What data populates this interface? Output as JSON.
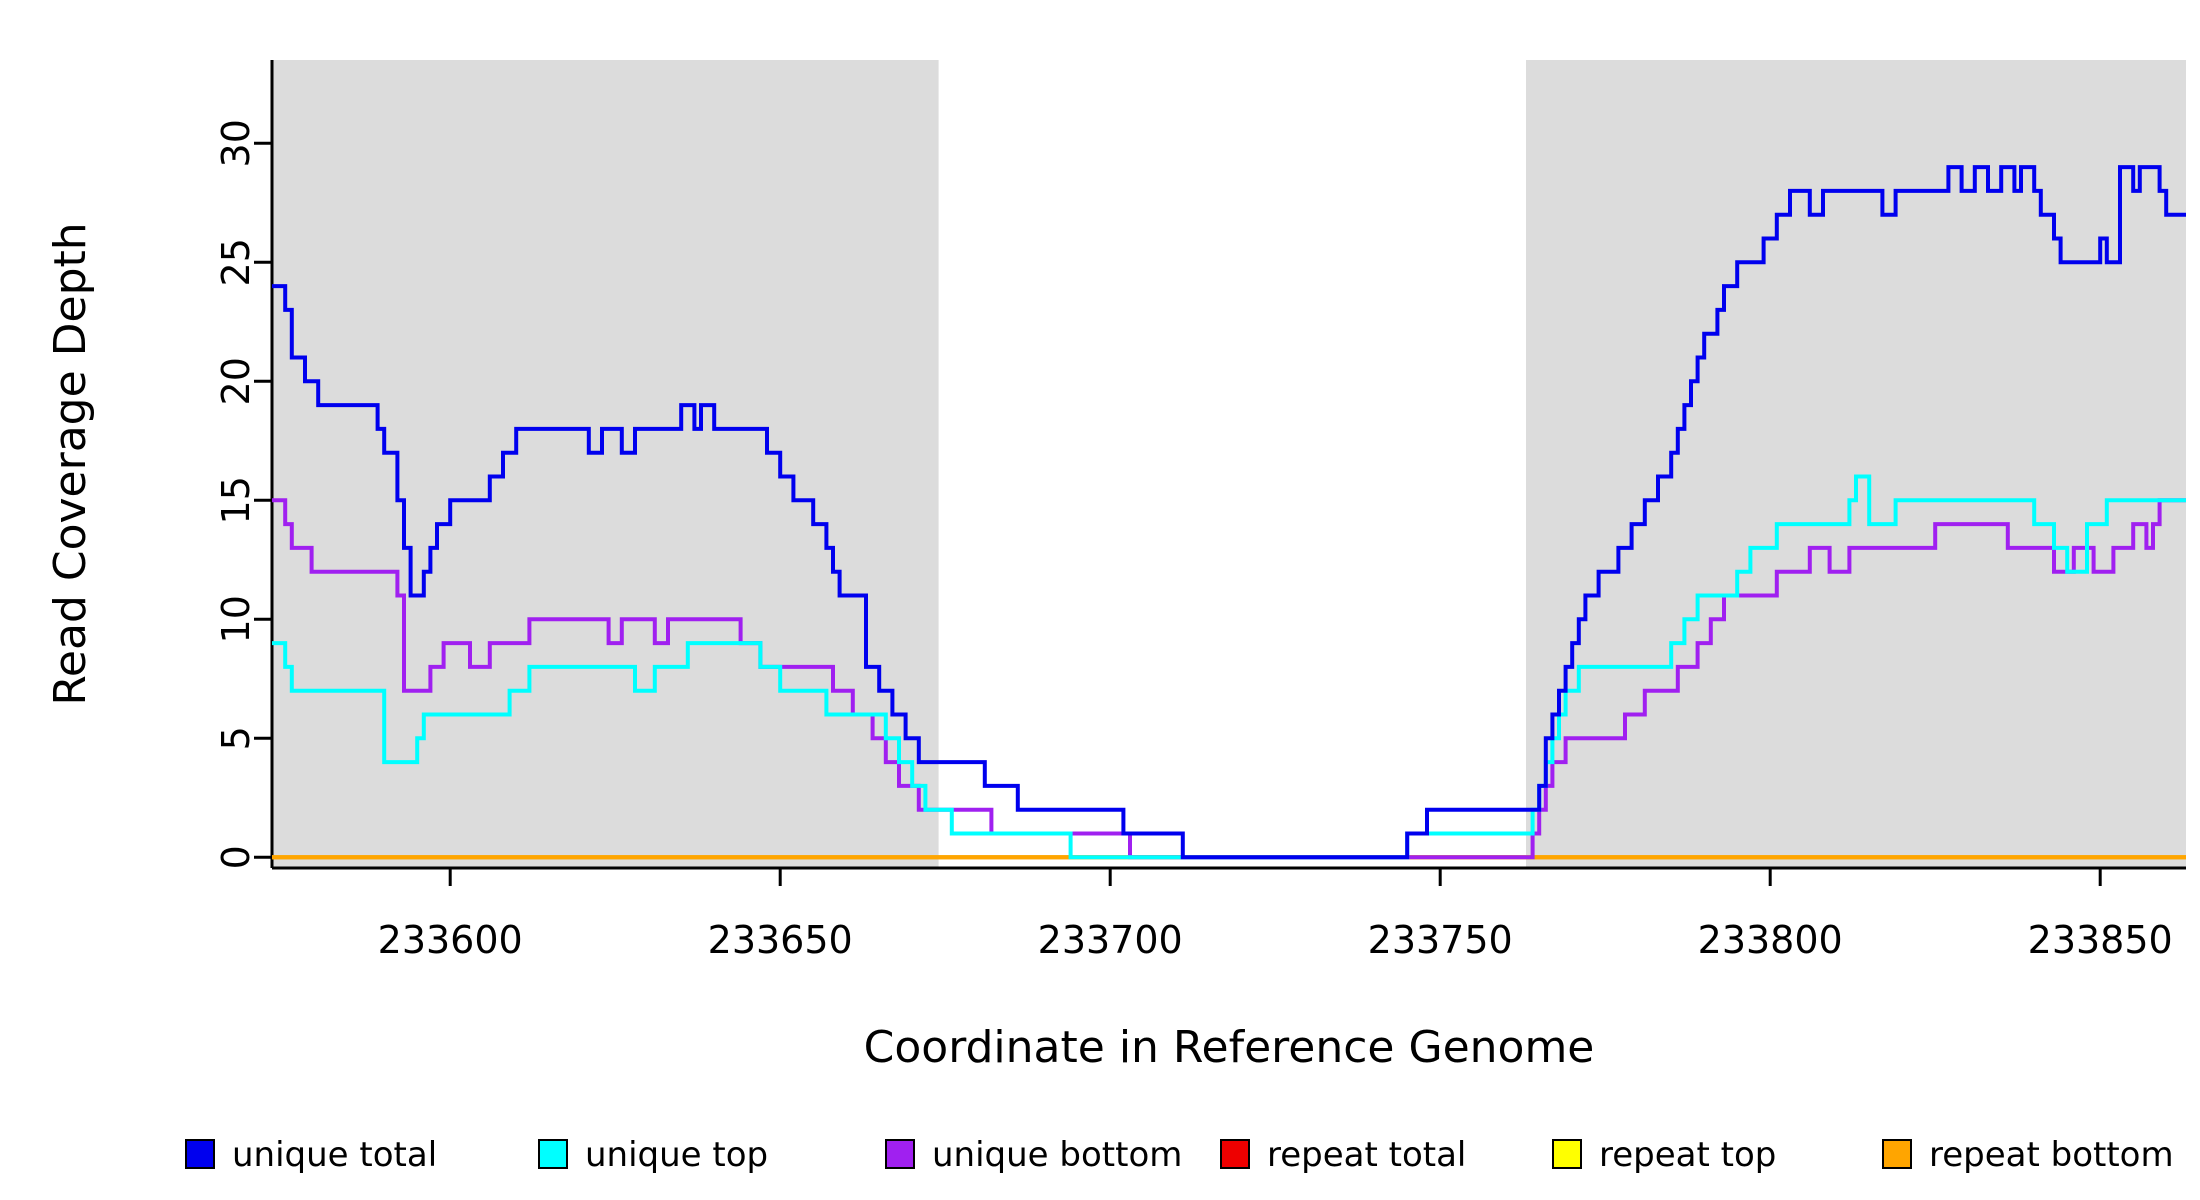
{
  "chart_data": {
    "type": "line",
    "subtype": "step",
    "title": "",
    "xlabel": "Coordinate in Reference Genome",
    "ylabel": "Read Coverage Depth",
    "xlim": [
      233573,
      233863
    ],
    "ylim": [
      0,
      30
    ],
    "x_ticks": [
      233600,
      233650,
      233700,
      233750,
      233800,
      233850
    ],
    "y_ticks": [
      0,
      5,
      10,
      15,
      20,
      25,
      30
    ],
    "grid": false,
    "legend_position": "bottom",
    "background_color": "#FFFFFF",
    "shaded_regions": [
      {
        "x0": 233573,
        "x1": 233674,
        "color": "#DCDCDC"
      },
      {
        "x0": 233763,
        "x1": 233863,
        "color": "#DCDCDC"
      }
    ],
    "draw_order": [
      3,
      4,
      5,
      2,
      1,
      0
    ],
    "series": [
      {
        "name": "unique total",
        "color": "#0000EE",
        "points": [
          [
            233573,
            24
          ],
          [
            233575,
            23
          ],
          [
            233576,
            21
          ],
          [
            233578,
            20
          ],
          [
            233580,
            19
          ],
          [
            233589,
            18
          ],
          [
            233590,
            17
          ],
          [
            233592,
            15
          ],
          [
            233593,
            13
          ],
          [
            233594,
            11
          ],
          [
            233596,
            12
          ],
          [
            233597,
            13
          ],
          [
            233598,
            14
          ],
          [
            233600,
            15
          ],
          [
            233606,
            16
          ],
          [
            233608,
            17
          ],
          [
            233610,
            18
          ],
          [
            233621,
            17
          ],
          [
            233623,
            18
          ],
          [
            233626,
            17
          ],
          [
            233628,
            18
          ],
          [
            233635,
            19
          ],
          [
            233637,
            18
          ],
          [
            233638,
            19
          ],
          [
            233640,
            18
          ],
          [
            233648,
            17
          ],
          [
            233650,
            16
          ],
          [
            233652,
            15
          ],
          [
            233655,
            14
          ],
          [
            233657,
            13
          ],
          [
            233658,
            12
          ],
          [
            233659,
            11
          ],
          [
            233663,
            8
          ],
          [
            233665,
            7
          ],
          [
            233667,
            6
          ],
          [
            233669,
            5
          ],
          [
            233671,
            4
          ],
          [
            233681,
            3
          ],
          [
            233686,
            2
          ],
          [
            233702,
            1
          ],
          [
            233711,
            0
          ],
          [
            233745,
            1
          ],
          [
            233748,
            2
          ],
          [
            233765,
            3
          ],
          [
            233766,
            5
          ],
          [
            233767,
            6
          ],
          [
            233768,
            7
          ],
          [
            233769,
            8
          ],
          [
            233770,
            9
          ],
          [
            233771,
            10
          ],
          [
            233772,
            11
          ],
          [
            233774,
            12
          ],
          [
            233777,
            13
          ],
          [
            233779,
            14
          ],
          [
            233781,
            15
          ],
          [
            233783,
            16
          ],
          [
            233785,
            17
          ],
          [
            233786,
            18
          ],
          [
            233787,
            19
          ],
          [
            233788,
            20
          ],
          [
            233789,
            21
          ],
          [
            233790,
            22
          ],
          [
            233792,
            23
          ],
          [
            233793,
            24
          ],
          [
            233795,
            25
          ],
          [
            233799,
            26
          ],
          [
            233801,
            27
          ],
          [
            233803,
            28
          ],
          [
            233806,
            27
          ],
          [
            233808,
            28
          ],
          [
            233817,
            27
          ],
          [
            233819,
            28
          ],
          [
            233827,
            29
          ],
          [
            233829,
            28
          ],
          [
            233831,
            29
          ],
          [
            233833,
            28
          ],
          [
            233835,
            29
          ],
          [
            233837,
            28
          ],
          [
            233838,
            29
          ],
          [
            233840,
            28
          ],
          [
            233841,
            27
          ],
          [
            233843,
            26
          ],
          [
            233844,
            25
          ],
          [
            233850,
            26
          ],
          [
            233851,
            25
          ],
          [
            233853,
            29
          ],
          [
            233855,
            28
          ],
          [
            233856,
            29
          ],
          [
            233859,
            28
          ],
          [
            233860,
            27
          ]
        ]
      },
      {
        "name": "unique top",
        "color": "#00FFFF",
        "points": [
          [
            233573,
            9
          ],
          [
            233575,
            8
          ],
          [
            233576,
            7
          ],
          [
            233590,
            4
          ],
          [
            233595,
            5
          ],
          [
            233596,
            6
          ],
          [
            233609,
            7
          ],
          [
            233612,
            8
          ],
          [
            233628,
            7
          ],
          [
            233631,
            8
          ],
          [
            233636,
            9
          ],
          [
            233647,
            8
          ],
          [
            233650,
            7
          ],
          [
            233657,
            6
          ],
          [
            233666,
            5
          ],
          [
            233668,
            4
          ],
          [
            233670,
            3
          ],
          [
            233672,
            2
          ],
          [
            233676,
            1
          ],
          [
            233694,
            0
          ],
          [
            233745,
            1
          ],
          [
            233764,
            2
          ],
          [
            233765,
            3
          ],
          [
            233766,
            4
          ],
          [
            233767,
            5
          ],
          [
            233768,
            6
          ],
          [
            233769,
            7
          ],
          [
            233771,
            8
          ],
          [
            233785,
            9
          ],
          [
            233787,
            10
          ],
          [
            233789,
            11
          ],
          [
            233795,
            12
          ],
          [
            233797,
            13
          ],
          [
            233801,
            14
          ],
          [
            233812,
            15
          ],
          [
            233813,
            16
          ],
          [
            233815,
            14
          ],
          [
            233819,
            15
          ],
          [
            233840,
            14
          ],
          [
            233843,
            13
          ],
          [
            233845,
            12
          ],
          [
            233848,
            14
          ],
          [
            233851,
            15
          ]
        ]
      },
      {
        "name": "unique bottom",
        "color": "#A020F0",
        "points": [
          [
            233573,
            15
          ],
          [
            233575,
            14
          ],
          [
            233576,
            13
          ],
          [
            233579,
            12
          ],
          [
            233592,
            11
          ],
          [
            233593,
            7
          ],
          [
            233597,
            8
          ],
          [
            233599,
            9
          ],
          [
            233603,
            8
          ],
          [
            233606,
            9
          ],
          [
            233612,
            10
          ],
          [
            233624,
            9
          ],
          [
            233626,
            10
          ],
          [
            233631,
            9
          ],
          [
            233633,
            10
          ],
          [
            233644,
            9
          ],
          [
            233647,
            8
          ],
          [
            233658,
            7
          ],
          [
            233661,
            6
          ],
          [
            233664,
            5
          ],
          [
            233666,
            4
          ],
          [
            233668,
            3
          ],
          [
            233671,
            2
          ],
          [
            233682,
            1
          ],
          [
            233703,
            0
          ],
          [
            233764,
            1
          ],
          [
            233765,
            2
          ],
          [
            233766,
            3
          ],
          [
            233767,
            4
          ],
          [
            233769,
            5
          ],
          [
            233778,
            6
          ],
          [
            233781,
            7
          ],
          [
            233786,
            8
          ],
          [
            233789,
            9
          ],
          [
            233791,
            10
          ],
          [
            233793,
            11
          ],
          [
            233801,
            12
          ],
          [
            233806,
            13
          ],
          [
            233809,
            12
          ],
          [
            233812,
            13
          ],
          [
            233825,
            14
          ],
          [
            233836,
            13
          ],
          [
            233843,
            12
          ],
          [
            233846,
            13
          ],
          [
            233849,
            12
          ],
          [
            233852,
            13
          ],
          [
            233855,
            14
          ],
          [
            233857,
            13
          ],
          [
            233858,
            14
          ],
          [
            233859,
            15
          ]
        ]
      },
      {
        "name": "repeat total",
        "color": "#EE0000",
        "points": [
          [
            233573,
            0
          ]
        ]
      },
      {
        "name": "repeat top",
        "color": "#FFFF00",
        "points": [
          [
            233573,
            0
          ]
        ]
      },
      {
        "name": "repeat bottom",
        "color": "#FFA500",
        "points": [
          [
            233573,
            0
          ]
        ]
      }
    ]
  }
}
